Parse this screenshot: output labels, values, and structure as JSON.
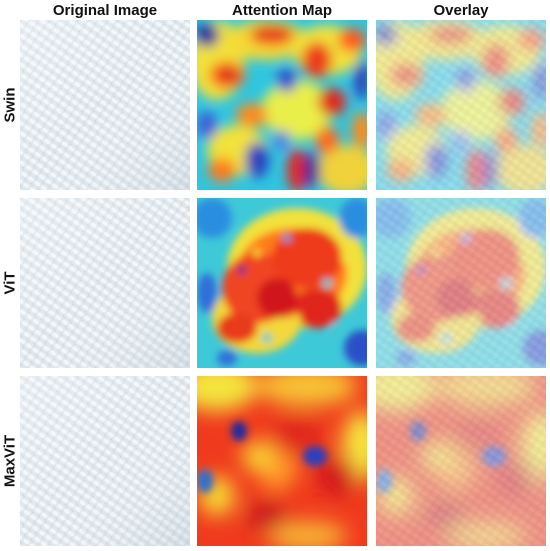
{
  "columns": [
    "Original Image",
    "Attention Map",
    "Overlay"
  ],
  "rows": [
    "Swin",
    "ViT",
    "MaxViT"
  ],
  "colors": {
    "fabric_base": "#dde6ec",
    "jet_low": "#1f2a9e",
    "jet_high": "#d0141b",
    "background": "#ffffff"
  }
}
